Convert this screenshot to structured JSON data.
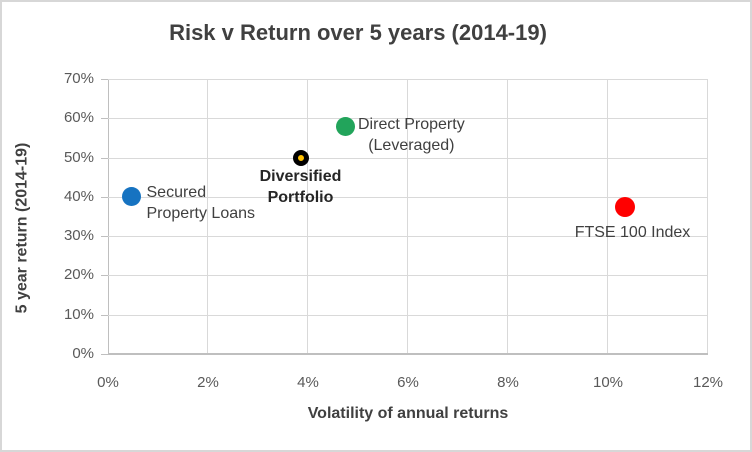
{
  "window": {
    "background": "#ffffff",
    "border_color": "#d7d7d7"
  },
  "chart_data": {
    "type": "scatter",
    "title": "Risk v Return over 5 years (2014-19)",
    "xlabel": "Volatility of annual returns",
    "ylabel": "5 year return (2014-19)",
    "xlim": [
      0,
      12
    ],
    "ylim": [
      0,
      70
    ],
    "x_tick_step": 2,
    "y_tick_step": 10,
    "x_ticks": [
      "0%",
      "2%",
      "4%",
      "6%",
      "8%",
      "10%",
      "12%"
    ],
    "y_ticks": [
      "0%",
      "10%",
      "20%",
      "30%",
      "40%",
      "50%",
      "60%",
      "70%"
    ],
    "grid": true,
    "legend_position": "none",
    "series": [
      {
        "name": "Secured Property Loans",
        "x": 0.47,
        "y": 40,
        "color": "#1673c1",
        "marker_size": 19,
        "label": {
          "lines": [
            "Secured",
            "Property Loans"
          ],
          "position": "right",
          "align": "left",
          "bold": false,
          "offset": [
            15,
            -15
          ]
        }
      },
      {
        "name": "Diversified Portfolio",
        "x": 3.85,
        "y": 50,
        "color": "#000000",
        "marker_center_color": "#ffc000",
        "marker_ring_width": 5,
        "marker_size": 16,
        "label": {
          "lines": [
            "Diversified",
            "Portfolio"
          ],
          "position": "below",
          "align": "center",
          "bold": true,
          "offset": [
            0,
            8
          ]
        }
      },
      {
        "name": "Direct Property (Leveraged)",
        "x": 4.74,
        "y": 58,
        "color": "#22a45b",
        "marker_size": 19,
        "label": {
          "lines": [
            "Direct Property",
            "(Leveraged)"
          ],
          "position": "right",
          "align": "center",
          "bold": false,
          "offset": [
            13,
            -12
          ]
        }
      },
      {
        "name": "FTSE 100 Index",
        "x": 10.33,
        "y": 37.5,
        "color": "#ff0000",
        "marker_size": 20,
        "label": {
          "lines": [
            "FTSE 100 Index"
          ],
          "position": "below",
          "align": "center",
          "bold": false,
          "offset": [
            8,
            15
          ]
        }
      }
    ],
    "colors": {
      "gridline": "#d9d9d9",
      "axis_line": "#bfbfbf",
      "tick_label": "#595959",
      "title": "#404040",
      "axis_title": "#404040",
      "data_label": "#404040",
      "data_label_bold": "#262626"
    }
  }
}
